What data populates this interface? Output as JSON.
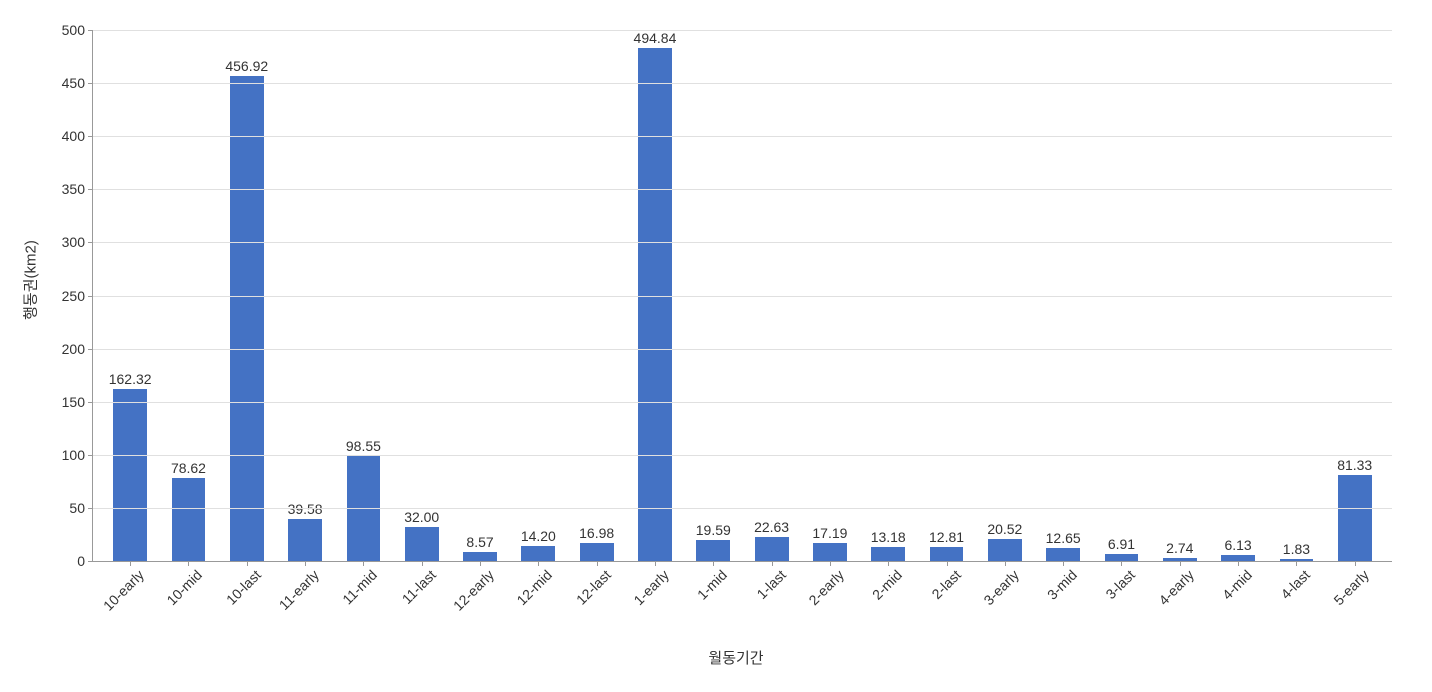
{
  "chart": {
    "type": "bar",
    "y_axis_label": "행동권(km2)",
    "x_axis_label": "월동기간",
    "background_color": "#ffffff",
    "grid_color": "#e0e0e0",
    "axis_color": "#999999",
    "text_color": "#333333",
    "bar_color": "#4472c4",
    "label_fontsize": 15,
    "tick_fontsize": 14,
    "value_fontsize": 14,
    "bar_width_ratio": 0.58,
    "ylim": [
      0,
      500
    ],
    "ytick_step": 50,
    "y_ticks": [
      0,
      50,
      100,
      150,
      200,
      250,
      300,
      350,
      400,
      450,
      500
    ],
    "categories": [
      "10-early",
      "10-mid",
      "10-last",
      "11-early",
      "11-mid",
      "11-last",
      "12-early",
      "12-mid",
      "12-last",
      "1-early",
      "1-mid",
      "1-last",
      "2-early",
      "2-mid",
      "2-last",
      "3-early",
      "3-mid",
      "3-last",
      "4-early",
      "4-mid",
      "4-last",
      "5-early"
    ],
    "values": [
      162.32,
      78.62,
      456.92,
      39.58,
      98.55,
      32.0,
      8.57,
      14.2,
      16.98,
      494.84,
      19.59,
      22.63,
      17.19,
      13.18,
      12.81,
      20.52,
      12.65,
      6.91,
      2.74,
      6.13,
      1.83,
      81.33
    ],
    "value_labels": [
      "162.32",
      "78.62",
      "456.92",
      "39.58",
      "98.55",
      "32.00",
      "8.57",
      "14.20",
      "16.98",
      "494.84",
      "19.59",
      "22.63",
      "17.19",
      "13.18",
      "12.81",
      "20.52",
      "12.65",
      "6.91",
      "2.74",
      "6.13",
      "1.83",
      "81.33"
    ]
  }
}
